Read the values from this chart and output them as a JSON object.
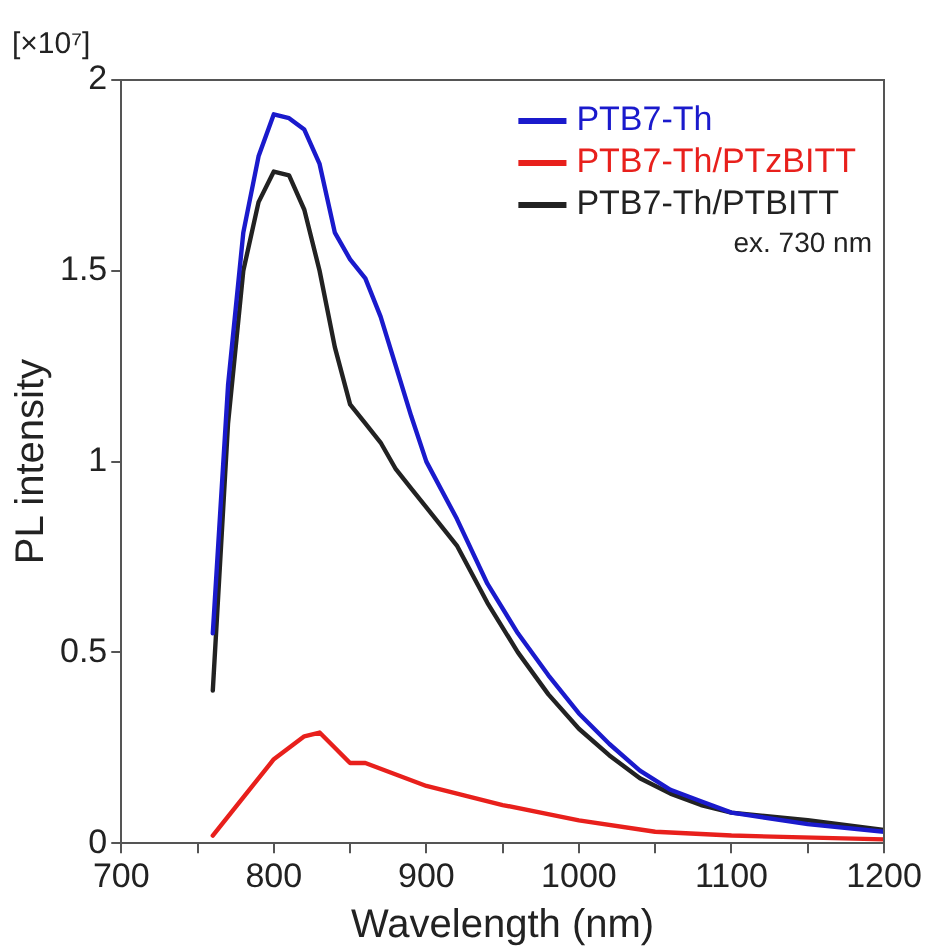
{
  "chart_data": {
    "type": "line",
    "xlabel": "Wavelength (nm)",
    "ylabel": "PL intensity",
    "annotations": [
      "[×10⁷]",
      "ex. 730 nm"
    ],
    "xlim": [
      700,
      1200
    ],
    "xticks": [
      700,
      {
        "value": 750,
        "label": null
      },
      800,
      {
        "value": 850,
        "label": null
      },
      900,
      {
        "value": 950,
        "label": null
      },
      1000,
      {
        "value": 1050,
        "label": null
      },
      1100,
      {
        "value": 1150,
        "label": null
      },
      1200
    ],
    "ylim": [
      0,
      2
    ],
    "yticks": [
      0,
      0.5,
      1,
      1.5,
      2
    ],
    "grid": false,
    "legend": "top right",
    "marker": "none",
    "line_style": "solid",
    "series": [
      {
        "name": "PTB7-Th",
        "color": "#1a1acc",
        "x": [
          760,
          770,
          780,
          790,
          800,
          810,
          820,
          830,
          840,
          850,
          860,
          870,
          880,
          890,
          900,
          920,
          940,
          960,
          980,
          1000,
          1020,
          1040,
          1060,
          1080,
          1100,
          1150,
          1200
        ],
        "values": [
          0.55,
          1.2,
          1.6,
          1.8,
          1.91,
          1.9,
          1.87,
          1.78,
          1.6,
          1.53,
          1.48,
          1.38,
          1.25,
          1.12,
          1.0,
          0.85,
          0.68,
          0.55,
          0.44,
          0.34,
          0.26,
          0.19,
          0.14,
          0.11,
          0.08,
          0.05,
          0.03
        ]
      },
      {
        "name": "PTB7-Th/PTzBITT",
        "color": "#e8201c",
        "x": [
          760,
          780,
          800,
          820,
          830,
          840,
          850,
          860,
          880,
          900,
          950,
          1000,
          1050,
          1100,
          1200
        ],
        "values": [
          0.02,
          0.12,
          0.22,
          0.28,
          0.29,
          0.25,
          0.21,
          0.21,
          0.18,
          0.15,
          0.1,
          0.06,
          0.03,
          0.02,
          0.01
        ]
      },
      {
        "name": "PTB7-Th/PTBITT",
        "color": "#222222",
        "x": [
          760,
          770,
          780,
          790,
          800,
          810,
          820,
          830,
          840,
          850,
          860,
          870,
          880,
          890,
          900,
          920,
          940,
          960,
          980,
          1000,
          1020,
          1040,
          1060,
          1080,
          1100,
          1150,
          1200
        ],
        "values": [
          0.4,
          1.1,
          1.5,
          1.68,
          1.76,
          1.75,
          1.66,
          1.5,
          1.3,
          1.15,
          1.1,
          1.05,
          0.98,
          0.93,
          0.88,
          0.78,
          0.63,
          0.5,
          0.39,
          0.3,
          0.23,
          0.17,
          0.13,
          0.1,
          0.08,
          0.06,
          0.035
        ]
      }
    ]
  }
}
